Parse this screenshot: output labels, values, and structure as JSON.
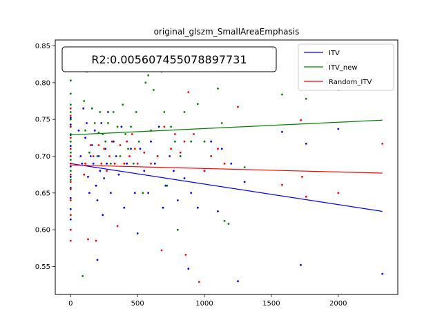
{
  "chart_data": {
    "type": "scatter",
    "title": "original_glszm_SmallAreaEmphasis",
    "xlabel": "",
    "ylabel": "",
    "xlim": [
      -115,
      2445
    ],
    "ylim": [
      0.512,
      0.858
    ],
    "xticks": [
      0,
      500,
      1000,
      1500,
      2000
    ],
    "yticks": [
      0.55,
      0.6,
      0.65,
      0.7,
      0.75,
      0.8,
      0.85
    ],
    "ytick_labels": [
      "0.55",
      "0.60",
      "0.65",
      "0.70",
      "0.75",
      "0.80",
      "0.85"
    ],
    "grid": false,
    "legend_position": "upper right",
    "annotation": "R2:0.005607455078897731",
    "series": [
      {
        "name": "ITV",
        "color": "#0000ff",
        "fit": [
          [
            0,
            0.69
          ],
          [
            2330,
            0.625
          ]
        ],
        "points": [
          [
            0,
            0.614
          ],
          [
            0,
            0.628
          ],
          [
            0,
            0.643
          ],
          [
            0,
            0.657
          ],
          [
            0,
            0.672
          ],
          [
            0,
            0.686
          ],
          [
            0,
            0.7
          ],
          [
            0,
            0.714
          ],
          [
            0,
            0.729
          ],
          [
            0,
            0.743
          ],
          [
            0,
            0.752
          ],
          [
            60,
            0.735
          ],
          [
            75,
            0.7
          ],
          [
            85,
            0.69
          ],
          [
            95,
            0.765
          ],
          [
            110,
            0.725
          ],
          [
            120,
            0.745
          ],
          [
            130,
            0.672
          ],
          [
            140,
            0.65
          ],
          [
            150,
            0.7
          ],
          [
            160,
            0.715
          ],
          [
            170,
            0.69
          ],
          [
            180,
            0.735
          ],
          [
            190,
            0.66
          ],
          [
            200,
            0.64
          ],
          [
            210,
            0.7
          ],
          [
            220,
            0.68
          ],
          [
            230,
            0.745
          ],
          [
            240,
            0.62
          ],
          [
            250,
            0.67
          ],
          [
            260,
            0.71
          ],
          [
            270,
            0.69
          ],
          [
            280,
            0.76
          ],
          [
            300,
            0.65
          ],
          [
            320,
            0.72
          ],
          [
            340,
            0.7
          ],
          [
            360,
            0.675
          ],
          [
            380,
            0.74
          ],
          [
            400,
            0.63
          ],
          [
            420,
            0.69
          ],
          [
            450,
            0.71
          ],
          [
            480,
            0.65
          ],
          [
            500,
            0.595
          ],
          [
            520,
            0.71
          ],
          [
            550,
            0.68
          ],
          [
            580,
            0.65
          ],
          [
            600,
            0.72
          ],
          [
            630,
            0.69
          ],
          [
            660,
            0.74
          ],
          [
            690,
            0.63
          ],
          [
            710,
            0.66
          ],
          [
            740,
            0.7
          ],
          [
            770,
            0.68
          ],
          [
            800,
            0.64
          ],
          [
            820,
            0.7
          ],
          [
            850,
            0.67
          ],
          [
            880,
            0.547
          ],
          [
            900,
            0.65
          ],
          [
            950,
            0.63
          ],
          [
            1000,
            0.68
          ],
          [
            1050,
            0.72
          ],
          [
            1100,
            0.625
          ],
          [
            1130,
            0.71
          ],
          [
            1200,
            0.69
          ],
          [
            1250,
            0.53
          ],
          [
            1300,
            0.665
          ],
          [
            1580,
            0.733
          ],
          [
            1720,
            0.552
          ],
          [
            1760,
            0.717
          ],
          [
            2000,
            0.737
          ],
          [
            2330,
            0.54
          ],
          [
            200,
            0.559
          ]
        ]
      },
      {
        "name": "ITV_new",
        "color": "#008000",
        "fit": [
          [
            0,
            0.729
          ],
          [
            2330,
            0.749
          ]
        ],
        "points": [
          [
            0,
            0.803
          ],
          [
            0,
            0.785
          ],
          [
            0,
            0.77
          ],
          [
            0,
            0.76
          ],
          [
            0,
            0.75
          ],
          [
            0,
            0.74
          ],
          [
            0,
            0.73
          ],
          [
            0,
            0.72
          ],
          [
            0,
            0.705
          ],
          [
            0,
            0.695
          ],
          [
            0,
            0.68
          ],
          [
            0,
            0.668
          ],
          [
            90,
            0.537
          ],
          [
            100,
            0.775
          ],
          [
            110,
            0.735
          ],
          [
            120,
            0.815
          ],
          [
            140,
            0.705
          ],
          [
            160,
            0.765
          ],
          [
            180,
            0.745
          ],
          [
            200,
            0.7
          ],
          [
            210,
            0.732
          ],
          [
            220,
            0.76
          ],
          [
            240,
            0.73
          ],
          [
            260,
            0.72
          ],
          [
            280,
            0.745
          ],
          [
            300,
            0.69
          ],
          [
            320,
            0.76
          ],
          [
            350,
            0.74
          ],
          [
            370,
            0.7
          ],
          [
            390,
            0.77
          ],
          [
            410,
            0.73
          ],
          [
            430,
            0.71
          ],
          [
            450,
            0.74
          ],
          [
            470,
            0.69
          ],
          [
            490,
            0.76
          ],
          [
            510,
            0.72
          ],
          [
            540,
            0.65
          ],
          [
            560,
            0.8
          ],
          [
            580,
            0.81
          ],
          [
            600,
            0.735
          ],
          [
            620,
            0.79
          ],
          [
            650,
            0.7
          ],
          [
            680,
            0.815
          ],
          [
            700,
            0.76
          ],
          [
            720,
            0.66
          ],
          [
            750,
            0.74
          ],
          [
            780,
            0.72
          ],
          [
            800,
            0.6
          ],
          [
            820,
            0.7
          ],
          [
            850,
            0.76
          ],
          [
            900,
            0.72
          ],
          [
            950,
            0.771
          ],
          [
            1000,
            0.72
          ],
          [
            1050,
            0.7
          ],
          [
            1100,
            0.792
          ],
          [
            1130,
            0.745
          ],
          [
            1150,
            0.612
          ],
          [
            1180,
            0.608
          ],
          [
            1300,
            0.685
          ],
          [
            1580,
            0.784
          ],
          [
            1760,
            0.778
          ],
          [
            2000,
            0.79
          ]
        ]
      },
      {
        "name": "Random_ITV",
        "color": "#ff0000",
        "fit": [
          [
            0,
            0.688
          ],
          [
            2330,
            0.677
          ]
        ],
        "points": [
          [
            0,
            0.585
          ],
          [
            0,
            0.6
          ],
          [
            0,
            0.62
          ],
          [
            0,
            0.64
          ],
          [
            0,
            0.655
          ],
          [
            0,
            0.665
          ],
          [
            0,
            0.675
          ],
          [
            0,
            0.69
          ],
          [
            0,
            0.7
          ],
          [
            0,
            0.71
          ],
          [
            0,
            0.725
          ],
          [
            0,
            0.74
          ],
          [
            0,
            0.755
          ],
          [
            0,
            0.765
          ],
          [
            100,
            0.675
          ],
          [
            110,
            0.69
          ],
          [
            130,
            0.587
          ],
          [
            150,
            0.715
          ],
          [
            170,
            0.7
          ],
          [
            190,
            0.585
          ],
          [
            210,
            0.715
          ],
          [
            230,
            0.69
          ],
          [
            250,
            0.71
          ],
          [
            270,
            0.68
          ],
          [
            290,
            0.7
          ],
          [
            310,
            0.72
          ],
          [
            330,
            0.69
          ],
          [
            350,
            0.605
          ],
          [
            370,
            0.715
          ],
          [
            400,
            0.69
          ],
          [
            420,
            0.72
          ],
          [
            440,
            0.7
          ],
          [
            460,
            0.73
          ],
          [
            480,
            0.71
          ],
          [
            500,
            0.69
          ],
          [
            550,
            0.705
          ],
          [
            600,
            0.69
          ],
          [
            650,
            0.7
          ],
          [
            680,
            0.572
          ],
          [
            700,
            0.74
          ],
          [
            750,
            0.71
          ],
          [
            780,
            0.73
          ],
          [
            820,
            0.705
          ],
          [
            850,
            0.72
          ],
          [
            860,
            0.566
          ],
          [
            880,
            0.787
          ],
          [
            920,
            0.73
          ],
          [
            960,
            0.529
          ],
          [
            1000,
            0.68
          ],
          [
            1050,
            0.7
          ],
          [
            1100,
            0.71
          ],
          [
            1150,
            0.69
          ],
          [
            1250,
            0.767
          ],
          [
            1580,
            0.661
          ],
          [
            1720,
            0.749
          ],
          [
            1730,
            0.672
          ],
          [
            1760,
            0.645
          ],
          [
            2000,
            0.65
          ],
          [
            2330,
            0.717
          ]
        ]
      }
    ]
  }
}
